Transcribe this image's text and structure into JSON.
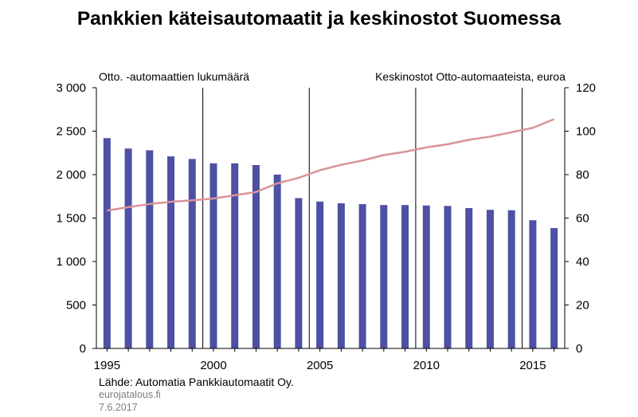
{
  "title": "Pankkien käteisautomaatit ja keskinostot Suomessa",
  "left_axis_label": "Otto. -automaattien lukumäärä",
  "right_axis_label": "Keskinostot Otto-automaateista, euroa",
  "source": "Lähde: Automatia Pankkiautomaatit Oy.",
  "site": "eurojatalous.fi",
  "date": "7.6.2017",
  "colors": {
    "bars": "#4d50a3",
    "line": "#d99397",
    "axis": "#000000"
  },
  "chart_data": {
    "type": "bar",
    "title": "Pankkien käteisautomaatit ja keskinostot Suomessa",
    "x": [
      1995,
      1996,
      1997,
      1998,
      1999,
      2000,
      2001,
      2002,
      2003,
      2004,
      2005,
      2006,
      2007,
      2008,
      2009,
      2010,
      2011,
      2012,
      2013,
      2014,
      2015,
      2016
    ],
    "x_tick_labels": [
      "1995",
      "2000",
      "2005",
      "2010",
      "2015"
    ],
    "x_tick_values": [
      1995,
      2000,
      2005,
      2010,
      2015
    ],
    "separator_years": [
      1999.5,
      2004.5,
      2009.5,
      2014.5
    ],
    "y_left": {
      "label": "Otto. -automaattien lukumäärä",
      "ylim": [
        0,
        3000
      ],
      "tick_values": [
        0,
        500,
        1000,
        1500,
        2000,
        2500,
        3000
      ],
      "tick_labels": [
        "0",
        "500",
        "1 000",
        "1 500",
        "2 000",
        "2 500",
        "3 000"
      ]
    },
    "y_right": {
      "label": "Keskinostot Otto-automaateista, euroa",
      "ylim": [
        0,
        120
      ],
      "tick_values": [
        0,
        20,
        40,
        60,
        80,
        100,
        120
      ],
      "tick_labels": [
        "0",
        "20",
        "40",
        "60",
        "80",
        "100",
        "120"
      ]
    },
    "series": [
      {
        "kind": "bar",
        "axis": "left",
        "values": [
          2420,
          2300,
          2280,
          2210,
          2180,
          2130,
          2130,
          2110,
          2000,
          1730,
          1690,
          1670,
          1660,
          1650,
          1650,
          1645,
          1640,
          1615,
          1595,
          1590,
          1475,
          1385
        ]
      },
      {
        "kind": "line",
        "axis": "right",
        "points": [
          [
            1995,
            63.5
          ],
          [
            1996,
            65
          ],
          [
            1997,
            66.5
          ],
          [
            1998,
            67.5
          ],
          [
            1999,
            68.2
          ],
          [
            2000,
            69
          ],
          [
            2001,
            70.5
          ],
          [
            2002,
            72
          ],
          [
            2003,
            76
          ],
          [
            2004,
            78.5
          ],
          [
            2005,
            82
          ],
          [
            2006,
            84.5
          ],
          [
            2007,
            86.5
          ],
          [
            2008,
            89
          ],
          [
            2009,
            90.5
          ],
          [
            2010,
            92.5
          ],
          [
            2011,
            94
          ],
          [
            2012,
            96
          ],
          [
            2013,
            97.5
          ],
          [
            2014,
            99.5
          ],
          [
            2015,
            101.5
          ],
          [
            2016,
            105.5
          ]
        ]
      }
    ],
    "grid": false,
    "legend": "none"
  }
}
